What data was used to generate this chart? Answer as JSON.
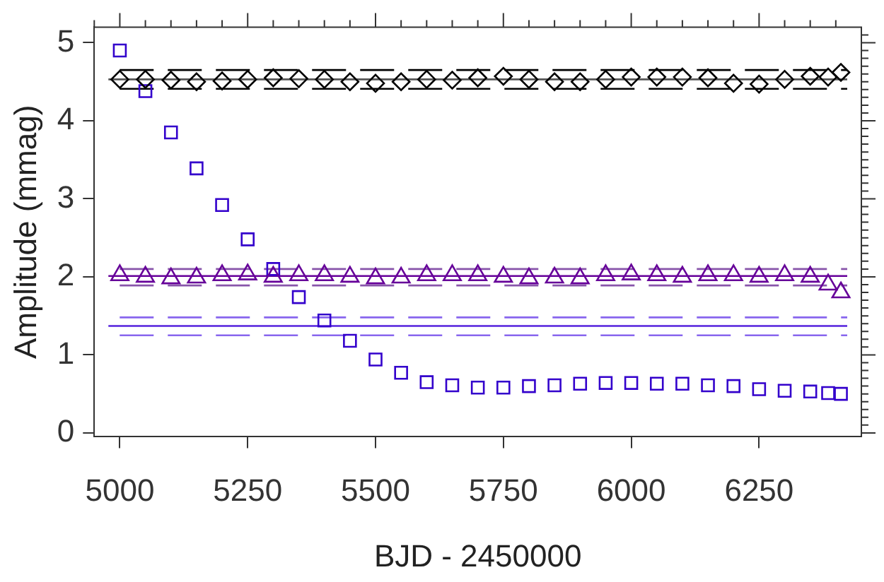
{
  "chart_data": {
    "type": "scatter",
    "xlabel": "BJD - 2450000",
    "ylabel": "Amplitude (mmag)",
    "x": [
      5000,
      5050,
      5100,
      5150,
      5200,
      5250,
      5300,
      5350,
      5400,
      5450,
      5500,
      5550,
      5600,
      5650,
      5700,
      5750,
      5800,
      5850,
      5900,
      5950,
      6000,
      6050,
      6100,
      6150,
      6200,
      6250,
      6300,
      6350,
      6385,
      6410
    ],
    "series": [
      {
        "color": "#000000",
        "marker": "diamond",
        "values": [
          4.53,
          4.53,
          4.52,
          4.5,
          4.51,
          4.53,
          4.55,
          4.54,
          4.53,
          4.5,
          4.48,
          4.5,
          4.53,
          4.52,
          4.55,
          4.57,
          4.53,
          4.5,
          4.5,
          4.53,
          4.56,
          4.56,
          4.56,
          4.55,
          4.48,
          4.47,
          4.53,
          4.57,
          4.56,
          4.62
        ]
      },
      {
        "color": "#660099",
        "marker": "triangle",
        "values": [
          2.02,
          2.0,
          1.98,
          1.99,
          2.02,
          2.03,
          2.0,
          2.02,
          2.02,
          2.0,
          1.98,
          1.99,
          2.02,
          2.02,
          2.02,
          2.0,
          1.98,
          1.99,
          1.98,
          2.02,
          2.03,
          2.02,
          2.0,
          2.02,
          2.02,
          2.0,
          2.02,
          2.0,
          1.9,
          1.8
        ]
      },
      {
        "color": "#3300cc",
        "marker": "square",
        "values": [
          4.9,
          4.38,
          3.85,
          3.39,
          2.92,
          2.48,
          2.1,
          1.74,
          1.44,
          1.18,
          0.94,
          0.77,
          0.65,
          0.61,
          0.58,
          0.58,
          0.6,
          0.61,
          0.63,
          0.64,
          0.64,
          0.63,
          0.63,
          0.61,
          0.6,
          0.56,
          0.54,
          0.53,
          0.51,
          0.5
        ]
      }
    ],
    "ref_lines": [
      {
        "axis": "y",
        "value": 4.53,
        "color": "#555555",
        "line_style": "solid"
      },
      {
        "axis": "y",
        "value": 4.65,
        "color": "#000000",
        "line_style": "dashed"
      },
      {
        "axis": "y",
        "value": 4.41,
        "color": "#000000",
        "line_style": "dashed"
      },
      {
        "axis": "y",
        "value": 2.01,
        "color": "#660099",
        "line_style": "solid"
      },
      {
        "axis": "y",
        "value": 2.1,
        "color": "#8855aa",
        "line_style": "dashed"
      },
      {
        "axis": "y",
        "value": 1.89,
        "color": "#8855aa",
        "line_style": "dashed"
      },
      {
        "axis": "y",
        "value": 1.37,
        "color": "#5522dd",
        "line_style": "solid"
      },
      {
        "axis": "y",
        "value": 1.48,
        "color": "#8866ee",
        "line_style": "dashed"
      },
      {
        "axis": "y",
        "value": 1.25,
        "color": "#8866ee",
        "line_style": "dashed"
      }
    ],
    "xlim": [
      4950,
      6450
    ],
    "xticks": [
      {
        "value": 4950,
        "label": null
      },
      5000,
      {
        "value": 5050,
        "label": null
      },
      {
        "value": 5100,
        "label": null
      },
      {
        "value": 5150,
        "label": null
      },
      {
        "value": 5200,
        "label": null
      },
      5250,
      {
        "value": 5300,
        "label": null
      },
      {
        "value": 5350,
        "label": null
      },
      {
        "value": 5400,
        "label": null
      },
      {
        "value": 5450,
        "label": null
      },
      5500,
      {
        "value": 5550,
        "label": null
      },
      {
        "value": 5600,
        "label": null
      },
      {
        "value": 5650,
        "label": null
      },
      {
        "value": 5700,
        "label": null
      },
      5750,
      {
        "value": 5800,
        "label": null
      },
      {
        "value": 5850,
        "label": null
      },
      {
        "value": 5900,
        "label": null
      },
      {
        "value": 5950,
        "label": null
      },
      6000,
      {
        "value": 6050,
        "label": null
      },
      {
        "value": 6100,
        "label": null
      },
      {
        "value": 6150,
        "label": null
      },
      {
        "value": 6200,
        "label": null
      },
      6250,
      {
        "value": 6300,
        "label": null
      },
      {
        "value": 6350,
        "label": null
      },
      {
        "value": 6400,
        "label": null
      }
    ],
    "ylim": [
      -0.05,
      5.2
    ],
    "yticks": [
      0,
      {
        "value": 0.1,
        "label": null
      },
      {
        "value": 0.2,
        "label": null
      },
      {
        "value": 0.3,
        "label": null
      },
      {
        "value": 0.4,
        "label": null
      },
      {
        "value": 0.5,
        "label": null
      },
      {
        "value": 0.6,
        "label": null
      },
      {
        "value": 0.7,
        "label": null
      },
      {
        "value": 0.8,
        "label": null
      },
      {
        "value": 0.9,
        "label": null
      },
      1,
      {
        "value": 1.1,
        "label": null
      },
      {
        "value": 1.2,
        "label": null
      },
      {
        "value": 1.3,
        "label": null
      },
      {
        "value": 1.4,
        "label": null
      },
      {
        "value": 1.5,
        "label": null
      },
      {
        "value": 1.6,
        "label": null
      },
      {
        "value": 1.7,
        "label": null
      },
      {
        "value": 1.8,
        "label": null
      },
      {
        "value": 1.9,
        "label": null
      },
      2,
      {
        "value": 2.1,
        "label": null
      },
      {
        "value": 2.2,
        "label": null
      },
      {
        "value": 2.3,
        "label": null
      },
      {
        "value": 2.4,
        "label": null
      },
      {
        "value": 2.5,
        "label": null
      },
      {
        "value": 2.6,
        "label": null
      },
      {
        "value": 2.7,
        "label": null
      },
      {
        "value": 2.8,
        "label": null
      },
      {
        "value": 2.9,
        "label": null
      },
      3,
      {
        "value": 3.1,
        "label": null
      },
      {
        "value": 3.2,
        "label": null
      },
      {
        "value": 3.3,
        "label": null
      },
      {
        "value": 3.4,
        "label": null
      },
      {
        "value": 3.5,
        "label": null
      },
      {
        "value": 3.6,
        "label": null
      },
      {
        "value": 3.7,
        "label": null
      },
      {
        "value": 3.8,
        "label": null
      },
      {
        "value": 3.9,
        "label": null
      },
      4,
      {
        "value": 4.1,
        "label": null
      },
      {
        "value": 4.2,
        "label": null
      },
      {
        "value": 4.3,
        "label": null
      },
      {
        "value": 4.4,
        "label": null
      },
      {
        "value": 4.5,
        "label": null
      },
      {
        "value": 4.6,
        "label": null
      },
      {
        "value": 4.7,
        "label": null
      },
      {
        "value": 4.8,
        "label": null
      },
      {
        "value": 4.9,
        "label": null
      },
      5,
      {
        "value": 5.1,
        "label": null
      }
    ],
    "grid": false,
    "legend": false
  }
}
